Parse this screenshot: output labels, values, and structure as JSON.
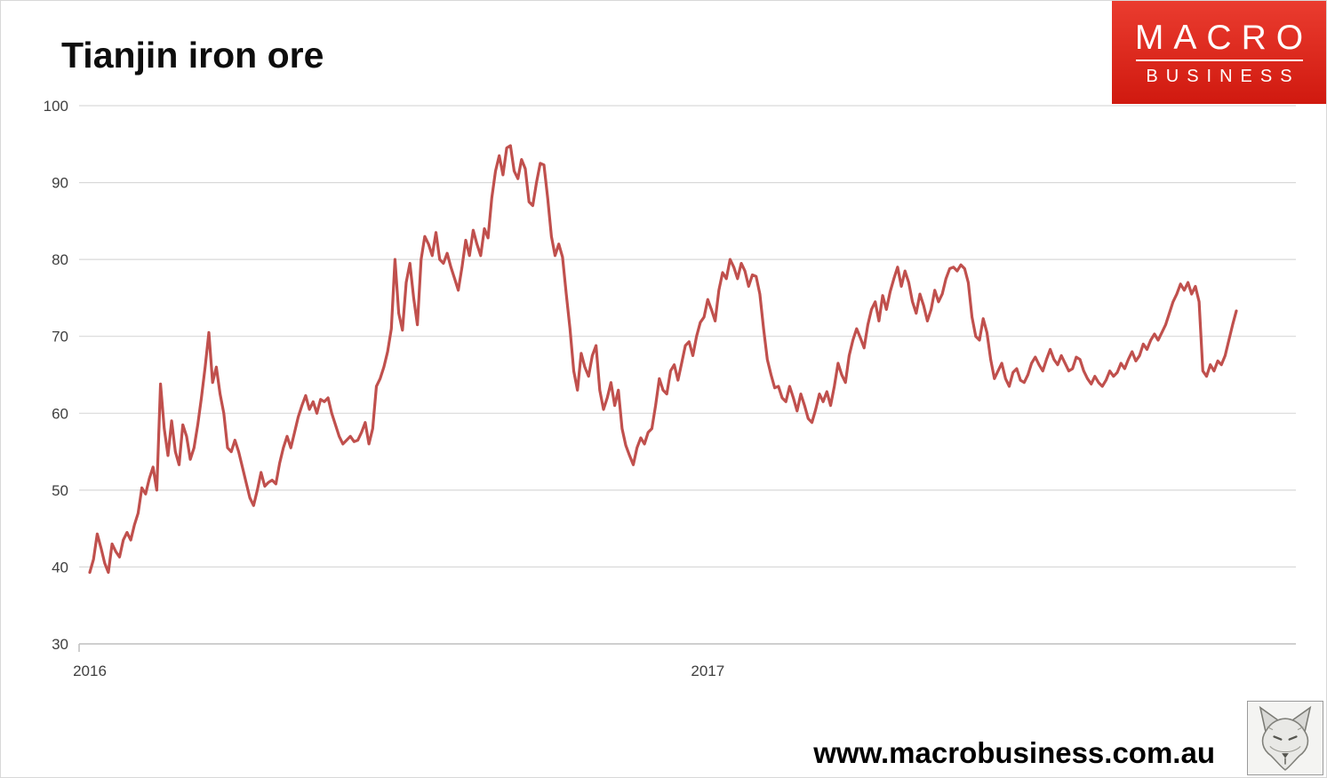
{
  "page": {
    "title": "Tianjin iron ore",
    "footer_url": "www.macrobusiness.com.au"
  },
  "logo": {
    "line1": "MACRO",
    "line2": "BUSINESS",
    "bg_color": "#da251c",
    "text_color": "#ffffff"
  },
  "icons": {
    "wolf_logo": "wolf-sketch-icon"
  },
  "chart_data": {
    "type": "line",
    "title": "Tianjin iron ore",
    "xlabel": "",
    "ylabel": "",
    "ylim": [
      30,
      100
    ],
    "y_ticks": [
      30,
      40,
      50,
      60,
      70,
      80,
      90,
      100
    ],
    "x_ticks": [
      {
        "label": "2016",
        "frac": 0.0
      },
      {
        "label": "2017",
        "frac": 0.539
      }
    ],
    "grid": true,
    "gridline_color": "#d9d9d9",
    "axis_color": "#bfbfbf",
    "line_color": "#c0504d",
    "background": "#ffffff",
    "legend": "none",
    "values": [
      39.3,
      41.0,
      44.3,
      42.5,
      40.5,
      39.3,
      43.0,
      42.0,
      41.3,
      43.5,
      44.5,
      43.5,
      45.5,
      47.0,
      50.3,
      49.5,
      51.5,
      53.0,
      50.0,
      63.8,
      58.0,
      54.5,
      59.0,
      55.0,
      53.3,
      58.5,
      57.0,
      54.0,
      55.5,
      58.5,
      62.0,
      66.0,
      70.5,
      64.0,
      66.0,
      62.5,
      60.0,
      55.5,
      55.0,
      56.5,
      55.0,
      53.0,
      51.0,
      49.0,
      48.0,
      50.0,
      52.3,
      50.5,
      51.0,
      51.3,
      50.8,
      53.5,
      55.5,
      57.0,
      55.5,
      57.5,
      59.5,
      61.0,
      62.3,
      60.5,
      61.5,
      60.0,
      61.8,
      61.5,
      62.0,
      60.0,
      58.5,
      57.0,
      56.0,
      56.5,
      57.0,
      56.3,
      56.5,
      57.5,
      58.8,
      56.0,
      58.0,
      63.5,
      64.5,
      66.0,
      68.0,
      71.0,
      80.0,
      73.0,
      70.8,
      77.0,
      79.5,
      75.0,
      71.5,
      80.0,
      83.0,
      82.0,
      80.5,
      83.5,
      80.0,
      79.5,
      80.8,
      79.0,
      77.5,
      76.0,
      79.0,
      82.5,
      80.5,
      83.8,
      82.0,
      80.5,
      84.0,
      82.8,
      88.0,
      91.5,
      93.5,
      91.0,
      94.5,
      94.8,
      91.5,
      90.5,
      93.0,
      91.8,
      87.5,
      87.0,
      90.0,
      92.5,
      92.3,
      88.0,
      83.0,
      80.5,
      82.0,
      80.3,
      75.5,
      71.0,
      65.5,
      63.0,
      67.8,
      66.0,
      64.8,
      67.5,
      68.8,
      63.0,
      60.5,
      62.0,
      64.0,
      61.0,
      63.0,
      58.0,
      55.8,
      54.5,
      53.3,
      55.5,
      56.8,
      56.0,
      57.5,
      58.0,
      61.0,
      64.5,
      63.0,
      62.5,
      65.5,
      66.3,
      64.3,
      66.5,
      68.8,
      69.3,
      67.5,
      70.0,
      71.8,
      72.5,
      74.8,
      73.5,
      72.0,
      76.0,
      78.3,
      77.5,
      80.0,
      79.0,
      77.5,
      79.5,
      78.5,
      76.5,
      78.0,
      77.8,
      75.5,
      71.0,
      67.0,
      65.0,
      63.3,
      63.5,
      62.0,
      61.5,
      63.5,
      62.0,
      60.3,
      62.5,
      61.0,
      59.3,
      58.8,
      60.5,
      62.5,
      61.5,
      62.8,
      61.0,
      63.5,
      66.5,
      65.0,
      64.0,
      67.5,
      69.5,
      71.0,
      69.8,
      68.5,
      71.5,
      73.5,
      74.5,
      72.0,
      75.3,
      73.5,
      75.8,
      77.5,
      79.0,
      76.5,
      78.5,
      77.0,
      74.5,
      73.0,
      75.5,
      74.0,
      72.0,
      73.5,
      76.0,
      74.5,
      75.5,
      77.5,
      78.8,
      79.0,
      78.5,
      79.3,
      78.8,
      77.0,
      72.5,
      70.0,
      69.5,
      72.3,
      70.5,
      67.0,
      64.5,
      65.5,
      66.5,
      64.5,
      63.5,
      65.3,
      65.8,
      64.3,
      64.0,
      65.0,
      66.5,
      67.3,
      66.3,
      65.5,
      67.0,
      68.3,
      67.0,
      66.3,
      67.5,
      66.5,
      65.5,
      65.8,
      67.3,
      67.0,
      65.5,
      64.5,
      63.8,
      64.8,
      64.0,
      63.5,
      64.3,
      65.5,
      64.8,
      65.3,
      66.5,
      65.8,
      67.0,
      68.0,
      66.8,
      67.5,
      69.0,
      68.3,
      69.5,
      70.3,
      69.5,
      70.5,
      71.5,
      73.0,
      74.5,
      75.5,
      76.8,
      76.0,
      77.0,
      75.5,
      76.5,
      74.5,
      65.5,
      64.8,
      66.3,
      65.5,
      66.8,
      66.3,
      67.5,
      69.5,
      71.5,
      73.3
    ]
  }
}
